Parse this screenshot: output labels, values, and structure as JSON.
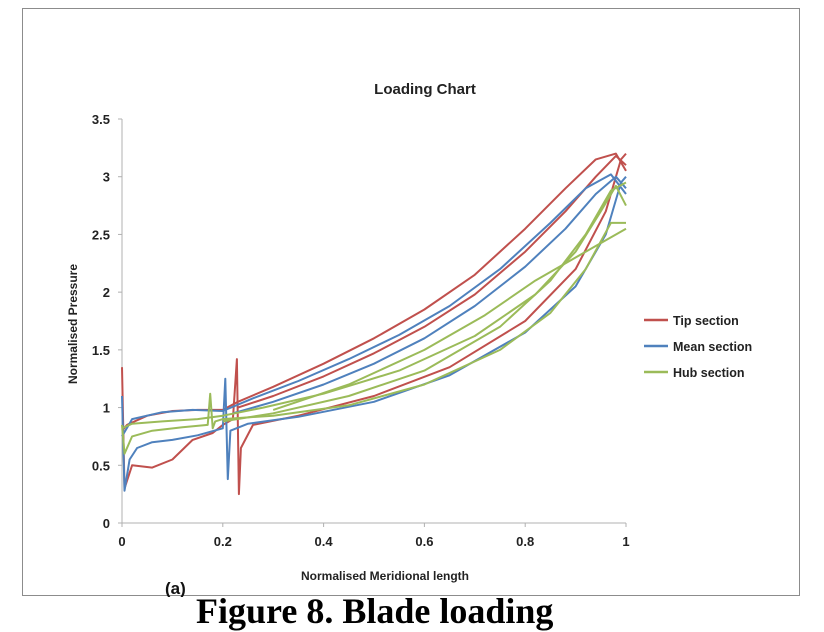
{
  "caption": "Figure 8. Blade loading",
  "chart_data": {
    "type": "line",
    "title": "Loading Chart",
    "xlabel": "Normalised Meridional length",
    "ylabel": "Normalised Pressure",
    "xlim": [
      0,
      1
    ],
    "ylim": [
      0,
      3.5
    ],
    "xticks": [
      "0",
      "0.2",
      "0.4",
      "0.6",
      "0.8",
      "1"
    ],
    "yticks": [
      "0",
      "0.5",
      "1",
      "1.5",
      "2",
      "2.5",
      "3",
      "3.5"
    ],
    "grid": false,
    "legend_position": "right",
    "panel_label": "(a)",
    "series": [
      {
        "name": "Tip section",
        "color": "#c0504d",
        "curves": [
          {
            "x": [
              0,
              0.005,
              0.02,
              0.06,
              0.1,
              0.14,
              0.18,
              0.2,
              0.22,
              0.228,
              0.232,
              0.236,
              0.26,
              0.35,
              0.5,
              0.65,
              0.8,
              0.9,
              0.96,
              0.99,
              1.0
            ],
            "y": [
              1.35,
              0.3,
              0.5,
              0.48,
              0.55,
              0.72,
              0.78,
              0.85,
              0.9,
              1.42,
              0.25,
              0.65,
              0.85,
              0.93,
              1.1,
              1.35,
              1.75,
              2.2,
              2.7,
              3.15,
              3.2
            ]
          },
          {
            "x": [
              0,
              0.01,
              0.05,
              0.1,
              0.15,
              0.2,
              0.23,
              0.3,
              0.4,
              0.5,
              0.6,
              0.7,
              0.8,
              0.88,
              0.94,
              0.98,
              1.0
            ],
            "y": [
              0.8,
              0.85,
              0.93,
              0.97,
              0.98,
              0.98,
              1.05,
              1.18,
              1.38,
              1.6,
              1.85,
              2.15,
              2.55,
              2.9,
              3.15,
              3.2,
              3.05
            ]
          },
          {
            "x": [
              0.23,
              0.3,
              0.4,
              0.5,
              0.6,
              0.7,
              0.8,
              0.88,
              0.94,
              0.98,
              1.0
            ],
            "y": [
              1.0,
              1.1,
              1.27,
              1.47,
              1.7,
              1.98,
              2.35,
              2.7,
              3.0,
              3.18,
              3.1
            ]
          }
        ]
      },
      {
        "name": "Mean section",
        "color": "#4f81bd",
        "curves": [
          {
            "x": [
              0,
              0.005,
              0.015,
              0.03,
              0.06,
              0.1,
              0.15,
              0.2,
              0.205,
              0.21,
              0.215,
              0.25,
              0.35,
              0.5,
              0.65,
              0.8,
              0.9,
              0.96,
              0.99,
              1.0
            ],
            "y": [
              1.1,
              0.28,
              0.55,
              0.65,
              0.7,
              0.72,
              0.76,
              0.82,
              1.25,
              0.38,
              0.8,
              0.86,
              0.92,
              1.05,
              1.28,
              1.65,
              2.05,
              2.5,
              2.95,
              3.0
            ]
          },
          {
            "x": [
              0,
              0.02,
              0.08,
              0.14,
              0.2,
              0.26,
              0.35,
              0.45,
              0.55,
              0.65,
              0.75,
              0.85,
              0.92,
              0.97,
              1.0
            ],
            "y": [
              0.75,
              0.9,
              0.96,
              0.98,
              0.97,
              1.08,
              1.23,
              1.42,
              1.63,
              1.88,
              2.2,
              2.6,
              2.9,
              3.02,
              2.85
            ]
          },
          {
            "x": [
              0.22,
              0.3,
              0.4,
              0.5,
              0.6,
              0.7,
              0.8,
              0.88,
              0.94,
              0.98,
              1.0
            ],
            "y": [
              0.95,
              1.05,
              1.2,
              1.38,
              1.6,
              1.88,
              2.22,
              2.55,
              2.85,
              3.0,
              2.9
            ]
          }
        ]
      },
      {
        "name": "Hub section",
        "color": "#9bbb59",
        "curves": [
          {
            "x": [
              0,
              0.005,
              0.02,
              0.06,
              0.12,
              0.17,
              0.175,
              0.18,
              0.185,
              0.2,
              0.3,
              0.45,
              0.6,
              0.75,
              0.85,
              0.92,
              0.97,
              1.0
            ],
            "y": [
              0.85,
              0.6,
              0.75,
              0.8,
              0.83,
              0.85,
              1.12,
              0.82,
              0.88,
              0.9,
              0.93,
              1.02,
              1.2,
              1.5,
              1.82,
              2.2,
              2.6,
              2.6
            ]
          },
          {
            "x": [
              0,
              0.02,
              0.08,
              0.15,
              0.2,
              0.28,
              0.4,
              0.55,
              0.7,
              0.82,
              0.9,
              0.95,
              0.98,
              1.0
            ],
            "y": [
              0.82,
              0.86,
              0.88,
              0.9,
              0.93,
              1.0,
              1.12,
              1.32,
              1.62,
              1.98,
              2.35,
              2.7,
              2.92,
              2.75
            ]
          },
          {
            "x": [
              0.2,
              0.3,
              0.45,
              0.6,
              0.75,
              0.85,
              0.92,
              0.97,
              1.0
            ],
            "y": [
              0.88,
              0.95,
              1.1,
              1.32,
              1.7,
              2.1,
              2.5,
              2.88,
              2.95
            ]
          },
          {
            "x": [
              0.3,
              0.45,
              0.6,
              0.72,
              0.82,
              0.9,
              0.96,
              1.0
            ],
            "y": [
              0.98,
              1.2,
              1.5,
              1.8,
              2.1,
              2.3,
              2.45,
              2.55
            ]
          }
        ]
      }
    ]
  }
}
